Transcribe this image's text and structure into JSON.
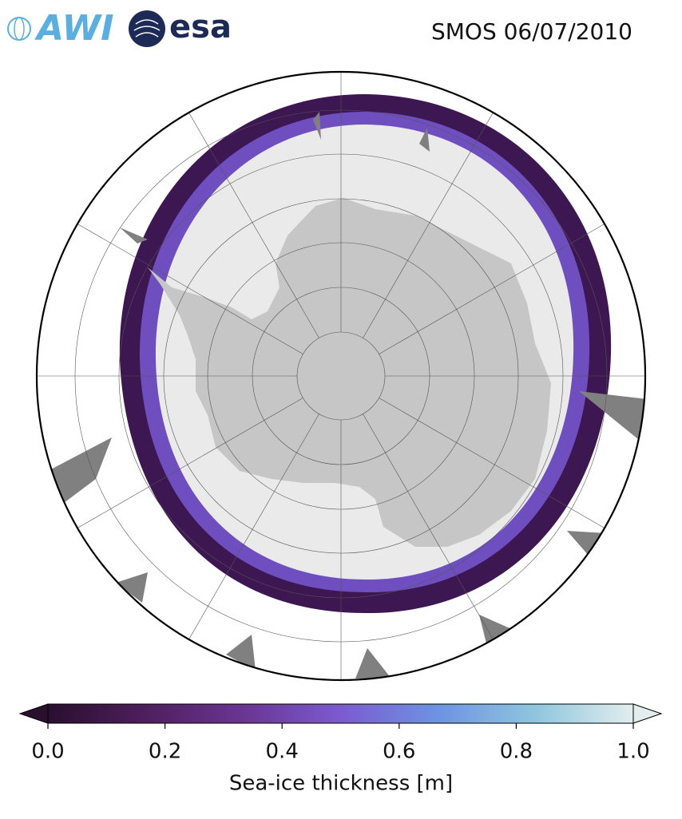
{
  "header": {
    "logos": [
      "AWI",
      "esa"
    ],
    "title": "SMOS 06/07/2010"
  },
  "colorbar": {
    "label": "Sea-ice thickness [m]",
    "lim": [
      0,
      1
    ],
    "ticks": [
      {
        "value": 0,
        "label": "0.0"
      },
      {
        "value": 0.2,
        "label": "0.2"
      },
      {
        "value": 0.4,
        "label": "0.4"
      },
      {
        "value": 0.6,
        "label": "0.6"
      },
      {
        "value": 0.8,
        "label": "0.8"
      },
      {
        "value": 1,
        "label": "1.0"
      }
    ],
    "colors": [
      "#2a0f2e",
      "#4e1f5e",
      "#6a3592",
      "#7b5bcf",
      "#6d93e2",
      "#8fc6de",
      "#e3eded"
    ]
  }
}
